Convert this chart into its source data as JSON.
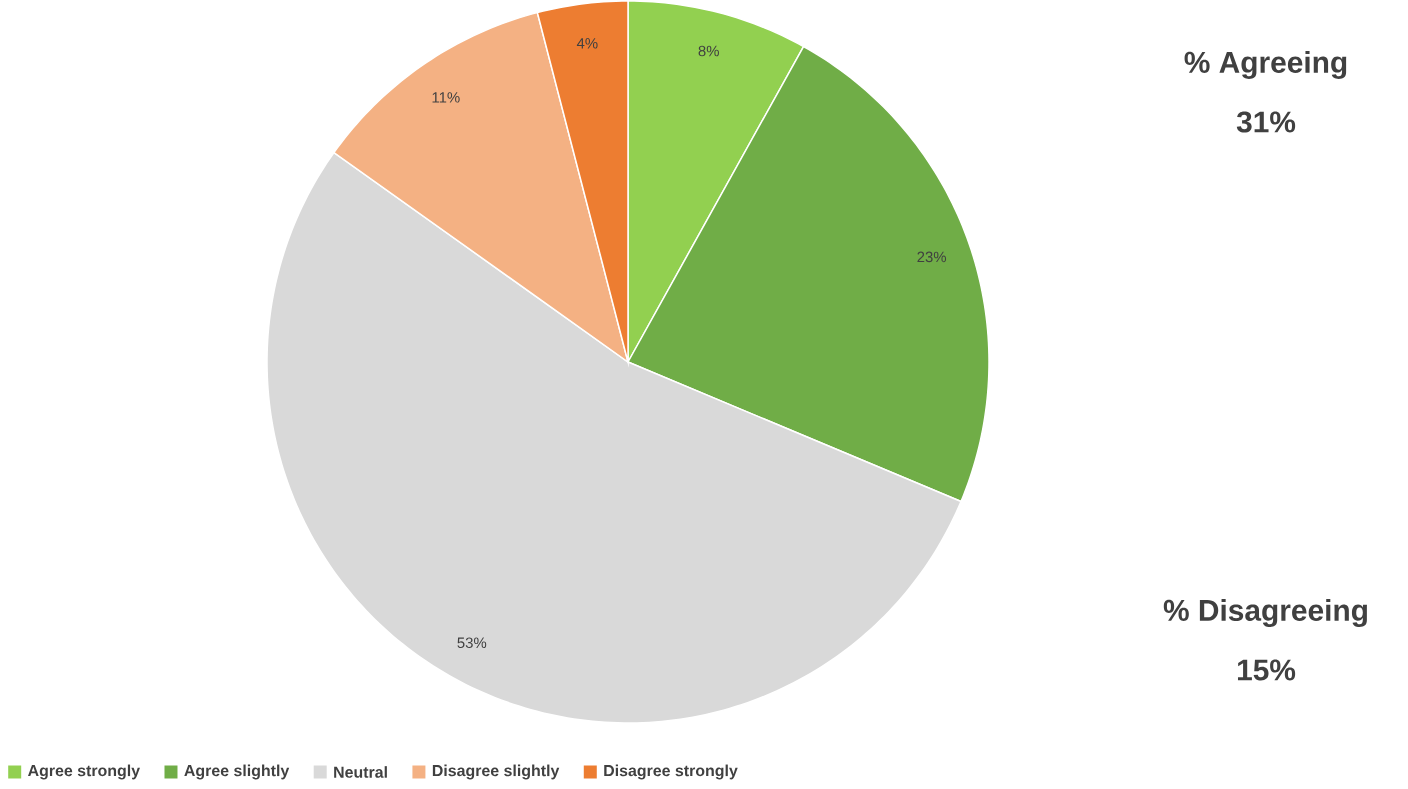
{
  "chart_data": {
    "type": "pie",
    "categories": [
      "Agree strongly",
      "Agree slightly",
      "Neutral",
      "Disagree slightly",
      "Disagree strongly"
    ],
    "values": [
      8,
      23,
      53,
      11,
      4
    ],
    "colors": [
      "#92d050",
      "#70ad47",
      "#d9d9d9",
      "#f4b183",
      "#ed7d31"
    ],
    "value_labels": [
      "8%",
      "23%",
      "53%",
      "11%",
      "4%"
    ],
    "legend": "bottom",
    "annotations": [
      "% Agreeing",
      "31%",
      "% Disagreeing",
      "15%"
    ]
  }
}
